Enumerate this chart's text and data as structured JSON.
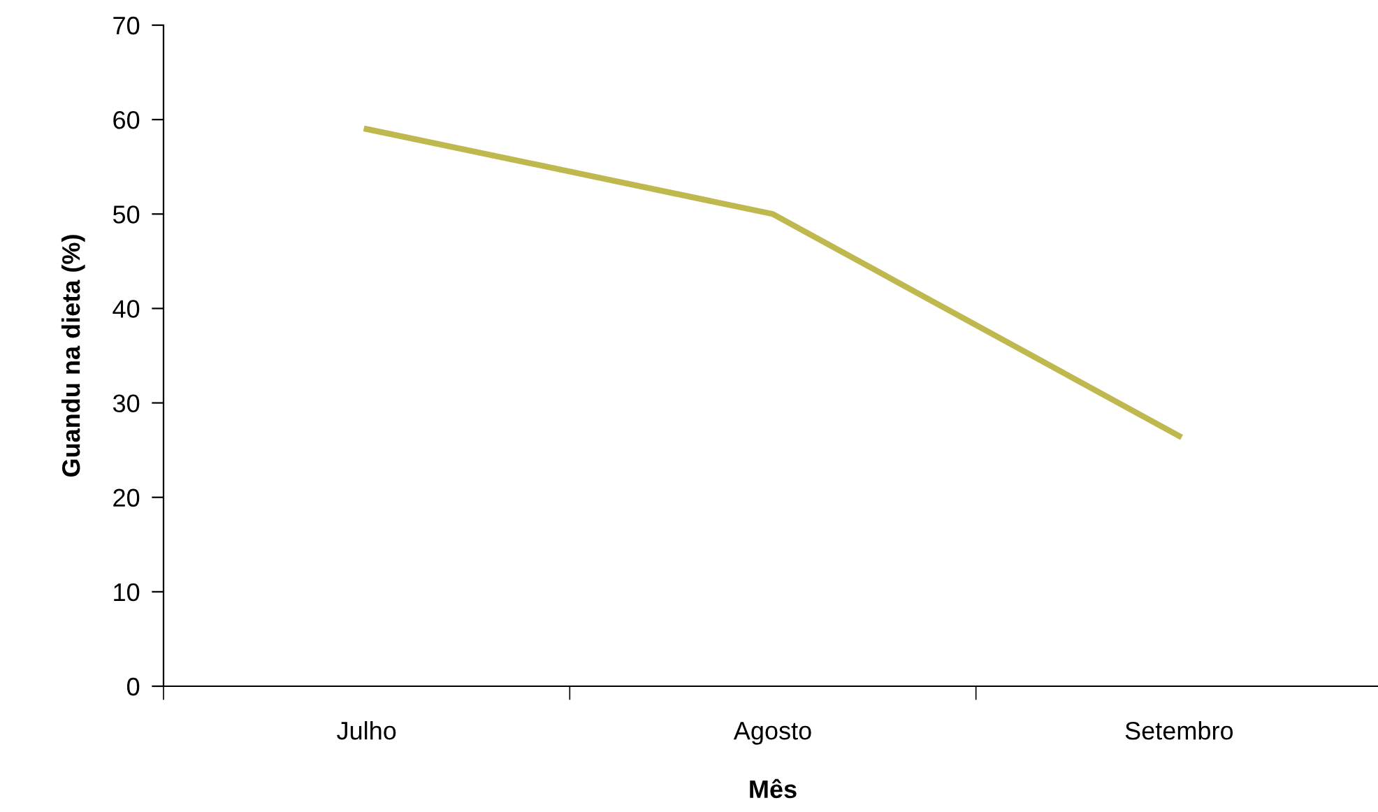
{
  "chart_data": {
    "type": "line",
    "xlabel": "Mês",
    "ylabel": "Guandu na dieta (%)",
    "categories": [
      "Julho",
      "Agosto",
      "Setembro"
    ],
    "series": [
      {
        "color": "#bfb84f",
        "values": [
          59,
          50,
          26.5
        ]
      }
    ],
    "ylim": [
      0,
      70
    ],
    "yticks": [
      0,
      10,
      20,
      30,
      40,
      50,
      60,
      70
    ],
    "grid": false,
    "legend": false,
    "marker": "none",
    "line_style": "solid"
  }
}
